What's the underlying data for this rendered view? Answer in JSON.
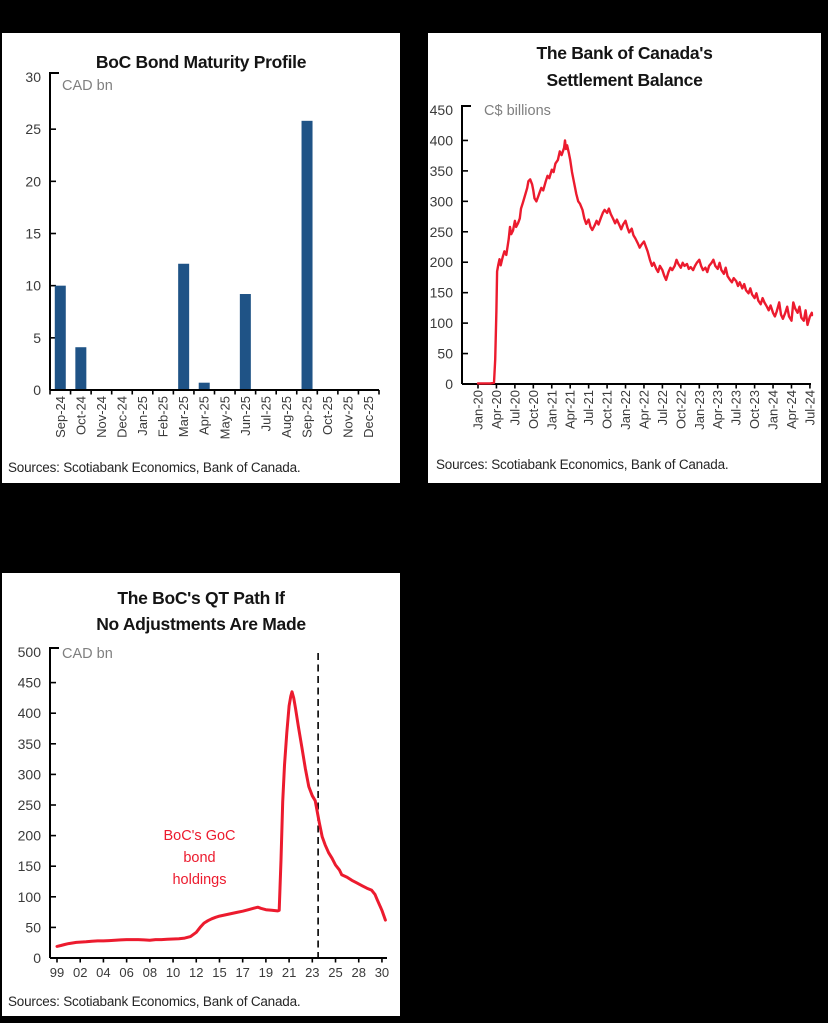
{
  "page": {
    "background": "#000000",
    "panel_background": "#ffffff"
  },
  "chart_data": [
    {
      "type": "bar",
      "title": "BoC Bond Maturity Profile",
      "unit_label": "CAD bn",
      "ylabel": "CAD bn",
      "xlabel": "",
      "categories": [
        "Sep-24",
        "Oct-24",
        "Nov-24",
        "Dec-24",
        "Jan-25",
        "Feb-25",
        "Mar-25",
        "Apr-25",
        "May-25",
        "Jun-25",
        "Jul-25",
        "Aug-25",
        "Sep-25",
        "Oct-25",
        "Nov-25",
        "Dec-25"
      ],
      "values": [
        10.0,
        4.1,
        0,
        0,
        0,
        0,
        12.1,
        0.7,
        0,
        9.2,
        0,
        0,
        25.8,
        0,
        0,
        0
      ],
      "ylim": [
        0,
        30
      ],
      "ytick_step": 5,
      "bar_color": "#1F5386",
      "grid": false,
      "legend": "none",
      "source": "Sources: Scotiabank Economics, Bank of Canada."
    },
    {
      "type": "line",
      "title": "The Bank of Canada's Settlement Balance",
      "title_lines": [
        "The Bank of Canada's",
        "Settlement Balance"
      ],
      "unit_label": "C$ billions",
      "ylabel": "C$ billions",
      "xlabel": "",
      "x_tick_labels": [
        "Jan-20",
        "Apr-20",
        "Jul-20",
        "Oct-20",
        "Jan-21",
        "Apr-21",
        "Jul-21",
        "Oct-21",
        "Jan-22",
        "Apr-22",
        "Jul-22",
        "Oct-22",
        "Jan-23",
        "Apr-23",
        "Jul-23",
        "Oct-23",
        "Jan-24",
        "Apr-24",
        "Jul-24"
      ],
      "x_months_per_tick": 3,
      "ylim": [
        0,
        450
      ],
      "ytick_step": 50,
      "grid": false,
      "legend": "none",
      "series": [
        {
          "name": "Settlement balance",
          "color": "#EC1B2E",
          "x_unit": "months since Jan-2020",
          "points": [
            [
              0,
              1
            ],
            [
              2,
              1
            ],
            [
              2.6,
              2
            ],
            [
              2.8,
              40
            ],
            [
              3,
              120
            ],
            [
              3.1,
              185
            ],
            [
              3.3,
              196
            ],
            [
              3.5,
              205
            ],
            [
              3.7,
              195
            ],
            [
              4,
              208
            ],
            [
              4.3,
              218
            ],
            [
              4.6,
              212
            ],
            [
              5,
              238
            ],
            [
              5.2,
              258
            ],
            [
              5.4,
              246
            ],
            [
              5.7,
              252
            ],
            [
              6,
              268
            ],
            [
              6.2,
              258
            ],
            [
              6.5,
              264
            ],
            [
              6.8,
              272
            ],
            [
              7,
              288
            ],
            [
              7.3,
              298
            ],
            [
              7.6,
              308
            ],
            [
              8,
              322
            ],
            [
              8.2,
              333
            ],
            [
              8.5,
              336
            ],
            [
              8.8,
              328
            ],
            [
              9,
              318
            ],
            [
              9.2,
              305
            ],
            [
              9.5,
              300
            ],
            [
              9.8,
              308
            ],
            [
              10,
              314
            ],
            [
              10.3,
              322
            ],
            [
              10.6,
              318
            ],
            [
              11,
              332
            ],
            [
              11.3,
              342
            ],
            [
              11.6,
              338
            ],
            [
              12,
              352
            ],
            [
              12.3,
              348
            ],
            [
              12.6,
              362
            ],
            [
              13,
              368
            ],
            [
              13.3,
              382
            ],
            [
              13.6,
              376
            ],
            [
              14,
              388
            ],
            [
              14.15,
              400
            ],
            [
              14.3,
              386
            ],
            [
              14.5,
              392
            ],
            [
              14.8,
              378
            ],
            [
              15,
              368
            ],
            [
              15.3,
              348
            ],
            [
              15.6,
              332
            ],
            [
              16,
              312
            ],
            [
              16.3,
              300
            ],
            [
              16.6,
              296
            ],
            [
              17,
              286
            ],
            [
              17.3,
              272
            ],
            [
              17.6,
              263
            ],
            [
              18,
              270
            ],
            [
              18.3,
              258
            ],
            [
              18.6,
              253
            ],
            [
              19,
              261
            ],
            [
              19.3,
              268
            ],
            [
              19.6,
              262
            ],
            [
              20,
              273
            ],
            [
              20.3,
              281
            ],
            [
              20.6,
              286
            ],
            [
              21,
              281
            ],
            [
              21.3,
              288
            ],
            [
              21.6,
              279
            ],
            [
              22,
              271
            ],
            [
              22.3,
              264
            ],
            [
              22.6,
              270
            ],
            [
              23,
              261
            ],
            [
              23.3,
              254
            ],
            [
              23.6,
              262
            ],
            [
              24,
              268
            ],
            [
              24.3,
              257
            ],
            [
              24.6,
              249
            ],
            [
              25,
              255
            ],
            [
              25.3,
              244
            ],
            [
              25.6,
              239
            ],
            [
              26,
              231
            ],
            [
              26.3,
              224
            ],
            [
              26.6,
              229
            ],
            [
              27,
              234
            ],
            [
              27.3,
              226
            ],
            [
              27.6,
              218
            ],
            [
              28,
              203
            ],
            [
              28.3,
              194
            ],
            [
              28.6,
              199
            ],
            [
              29,
              189
            ],
            [
              29.3,
              184
            ],
            [
              29.6,
              194
            ],
            [
              30,
              187
            ],
            [
              30.3,
              178
            ],
            [
              30.6,
              171
            ],
            [
              31,
              184
            ],
            [
              31.3,
              191
            ],
            [
              31.6,
              187
            ],
            [
              32,
              194
            ],
            [
              32.3,
              204
            ],
            [
              32.6,
              197
            ],
            [
              33,
              191
            ],
            [
              33.3,
              199
            ],
            [
              33.6,
              194
            ],
            [
              34,
              197
            ],
            [
              34.3,
              189
            ],
            [
              34.6,
              192
            ],
            [
              35,
              187
            ],
            [
              35.3,
              194
            ],
            [
              35.6,
              199
            ],
            [
              36,
              204
            ],
            [
              36.3,
              194
            ],
            [
              36.6,
              187
            ],
            [
              37,
              191
            ],
            [
              37.3,
              184
            ],
            [
              37.6,
              194
            ],
            [
              38,
              199
            ],
            [
              38.3,
              204
            ],
            [
              38.6,
              194
            ],
            [
              39,
              189
            ],
            [
              39.3,
              199
            ],
            [
              39.6,
              187
            ],
            [
              40,
              181
            ],
            [
              40.3,
              191
            ],
            [
              40.6,
              177
            ],
            [
              41,
              171
            ],
            [
              41.3,
              167
            ],
            [
              41.6,
              174
            ],
            [
              42,
              169
            ],
            [
              42.3,
              161
            ],
            [
              42.6,
              167
            ],
            [
              43,
              157
            ],
            [
              43.3,
              164
            ],
            [
              43.6,
              154
            ],
            [
              44,
              149
            ],
            [
              44.3,
              157
            ],
            [
              44.6,
              147
            ],
            [
              45,
              141
            ],
            [
              45.3,
              149
            ],
            [
              45.6,
              137
            ],
            [
              46,
              131
            ],
            [
              46.3,
              141
            ],
            [
              46.6,
              134
            ],
            [
              47,
              127
            ],
            [
              47.3,
              121
            ],
            [
              47.6,
              129
            ],
            [
              48,
              117
            ],
            [
              48.3,
              111
            ],
            [
              48.6,
              119
            ],
            [
              49,
              134
            ],
            [
              49.3,
              114
            ],
            [
              49.6,
              107
            ],
            [
              50,
              117
            ],
            [
              50.3,
              127
            ],
            [
              50.6,
              111
            ],
            [
              51,
              104
            ],
            [
              51.3,
              134
            ],
            [
              51.6,
              124
            ],
            [
              52,
              117
            ],
            [
              52.3,
              127
            ],
            [
              52.6,
              109
            ],
            [
              53,
              104
            ],
            [
              53.3,
              121
            ],
            [
              53.6,
              97
            ],
            [
              54,
              111
            ],
            [
              54.3,
              117
            ],
            [
              54.5,
              113
            ]
          ]
        }
      ],
      "source": "Sources: Scotiabank Economics, Bank of Canada."
    },
    {
      "type": "line",
      "title": "The BoC's QT Path If No Adjustments Are Made",
      "title_lines": [
        "The BoC's QT Path If",
        "No Adjustments Are Made"
      ],
      "unit_label": "CAD bn",
      "ylabel": "CAD bn",
      "xlabel": "",
      "x_tick_labels": [
        "99",
        "02",
        "04",
        "06",
        "08",
        "10",
        "12",
        "15",
        "17",
        "19",
        "21",
        "23",
        "25",
        "28",
        "30"
      ],
      "x_tick_years": [
        1999,
        2002,
        2004,
        2006,
        2008,
        2010,
        2012,
        2015,
        2017,
        2019,
        2021,
        2023,
        2025,
        2028,
        2030
      ],
      "ylim": [
        0,
        500
      ],
      "ytick_step": 50,
      "grid": false,
      "legend": "none",
      "dashed_vline_year": 2023.5,
      "annotation": {
        "lines": [
          "BoC's GoC",
          "bond",
          "holdings"
        ],
        "color": "#EC1B2E"
      },
      "series": [
        {
          "name": "BoC's GoC bond holdings",
          "color": "#EC1B2E",
          "x_unit": "year",
          "points": [
            [
              1999,
              19
            ],
            [
              1999.5,
              20.5
            ],
            [
              2000,
              22
            ],
            [
              2000.5,
              23.5
            ],
            [
              2001,
              24.5
            ],
            [
              2001.5,
              25.5
            ],
            [
              2002,
              26
            ],
            [
              2002.5,
              26.5
            ],
            [
              2003,
              27.5
            ],
            [
              2003.5,
              28
            ],
            [
              2004,
              28
            ],
            [
              2004.5,
              28.5
            ],
            [
              2005,
              29
            ],
            [
              2005.5,
              29.5
            ],
            [
              2006,
              30
            ],
            [
              2006.5,
              30
            ],
            [
              2007,
              30
            ],
            [
              2007.5,
              29.5
            ],
            [
              2008,
              29
            ],
            [
              2008.5,
              30
            ],
            [
              2009,
              30
            ],
            [
              2009.5,
              30.5
            ],
            [
              2010,
              31
            ],
            [
              2010.5,
              31.5
            ],
            [
              2011,
              32.5
            ],
            [
              2011.5,
              35
            ],
            [
              2012,
              42
            ],
            [
              2012.5,
              50
            ],
            [
              2013,
              57
            ],
            [
              2013.5,
              61
            ],
            [
              2014,
              64
            ],
            [
              2014.5,
              66.5
            ],
            [
              2015,
              68.5
            ],
            [
              2015.5,
              70.5
            ],
            [
              2016,
              72.5
            ],
            [
              2016.5,
              74.5
            ],
            [
              2017,
              76.5
            ],
            [
              2017.5,
              79
            ],
            [
              2018,
              81.5
            ],
            [
              2018.3,
              83
            ],
            [
              2018.6,
              81
            ],
            [
              2019,
              79
            ],
            [
              2019.5,
              78
            ],
            [
              2020,
              77
            ],
            [
              2020.15,
              78
            ],
            [
              2020.3,
              160
            ],
            [
              2020.45,
              255
            ],
            [
              2020.6,
              315
            ],
            [
              2020.8,
              368
            ],
            [
              2021,
              412
            ],
            [
              2021.15,
              428
            ],
            [
              2021.25,
              435
            ],
            [
              2021.4,
              425
            ],
            [
              2021.55,
              408
            ],
            [
              2021.8,
              378
            ],
            [
              2022.1,
              344
            ],
            [
              2022.4,
              310
            ],
            [
              2022.7,
              280
            ],
            [
              2023,
              265
            ],
            [
              2023.25,
              257
            ],
            [
              2023.6,
              221
            ],
            [
              2023.85,
              198
            ],
            [
              2024.1,
              185
            ],
            [
              2024.4,
              172
            ],
            [
              2024.7,
              163
            ],
            [
              2025,
              152
            ],
            [
              2025.5,
              144
            ],
            [
              2025.8,
              136
            ],
            [
              2026.5,
              132
            ],
            [
              2027.1,
              127
            ],
            [
              2027.7,
              123
            ],
            [
              2028.3,
              118
            ],
            [
              2028.7,
              114
            ],
            [
              2029.1,
              111
            ],
            [
              2029.4,
              104
            ],
            [
              2029.6,
              95
            ],
            [
              2030,
              78
            ],
            [
              2030.3,
              62
            ]
          ]
        }
      ],
      "source": "Sources: Scotiabank Economics, Bank of Canada."
    }
  ]
}
